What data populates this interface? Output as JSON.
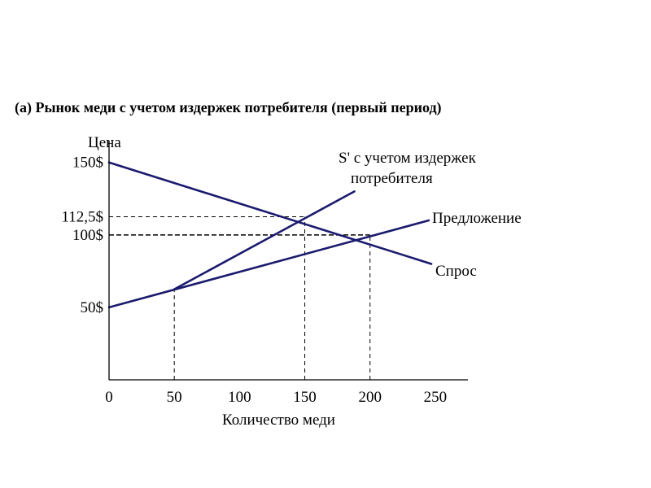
{
  "chart_data": {
    "type": "line",
    "title": "(а) Рынок меди с учетом издержек потребителя (первый период)",
    "xlabel": "Количество меди",
    "ylabel": "Цена",
    "xlim": [
      0,
      275
    ],
    "ylim": [
      0,
      165
    ],
    "x_ticks": [
      {
        "value": 0,
        "label": "0"
      },
      {
        "value": 50,
        "label": "50"
      },
      {
        "value": 100,
        "label": "100"
      },
      {
        "value": 150,
        "label": "150"
      },
      {
        "value": 200,
        "label": "200"
      },
      {
        "value": 250,
        "label": "250"
      }
    ],
    "y_ticks": [
      {
        "value": 50,
        "label": "50$"
      },
      {
        "value": 100,
        "label": "100$"
      },
      {
        "value": 112.5,
        "label": "112,5$"
      },
      {
        "value": 150,
        "label": "150$"
      }
    ],
    "series": [
      {
        "name": "Спрос",
        "color": "#1a1a6e",
        "points": [
          [
            0,
            150
          ],
          [
            247,
            80
          ]
        ]
      },
      {
        "name": "Предложение",
        "color": "#1a1a6e",
        "points": [
          [
            0,
            50
          ],
          [
            245,
            110
          ]
        ]
      },
      {
        "name": "S' с учетом издержек потребителя",
        "color": "#1a1a6e",
        "points": [
          [
            50,
            62.5
          ],
          [
            188,
            130
          ]
        ]
      }
    ],
    "labels": {
      "demand": "Спрос",
      "supply": "Предложение",
      "s_prime_line1": "S' с учетом издержек",
      "s_prime_line2": "потребителя"
    },
    "guides": [
      {
        "type": "h",
        "y": 112.5,
        "x_to": 150,
        "style": "dashed"
      },
      {
        "type": "h",
        "y": 100,
        "x_to": 200,
        "style": "dashed-bold"
      },
      {
        "type": "v",
        "x": 50,
        "y_to": 62.5,
        "style": "dashed"
      },
      {
        "type": "v",
        "x": 150,
        "y_to": 112.5,
        "style": "dashed"
      },
      {
        "type": "v",
        "x": 200,
        "y_to": 100,
        "style": "dashed"
      }
    ],
    "grid": false,
    "legend": "none"
  }
}
